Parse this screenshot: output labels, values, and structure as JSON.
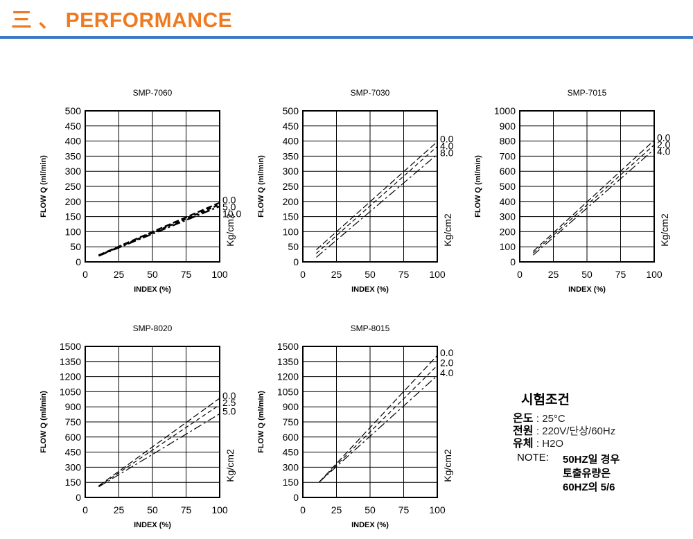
{
  "header": {
    "title": "三 、 PERFORMANCE",
    "accent": "#ee7a22",
    "rule_color": "#3b7bc4"
  },
  "chart_data": [
    {
      "type": "line",
      "title": "SMP-7060",
      "xlabel": "INDEX (%)",
      "ylabel": "FLOW Q (ml/min)",
      "unit": "Kg/cm2",
      "xlim": [
        0,
        100
      ],
      "ylim": [
        0,
        500
      ],
      "xticks": [
        "0",
        "25",
        "50",
        "75",
        "100"
      ],
      "yticks": [
        "0",
        "50",
        "100",
        "150",
        "200",
        "250",
        "300",
        "350",
        "400",
        "450",
        "500"
      ],
      "grid": true,
      "series": [
        {
          "name": "0.0",
          "x": [
            10,
            100
          ],
          "y": [
            22,
            196
          ]
        },
        {
          "name": "5.0",
          "x": [
            10,
            100
          ],
          "y": [
            21,
            190
          ]
        },
        {
          "name": "10.0",
          "x": [
            10,
            100
          ],
          "y": [
            20,
            184
          ]
        }
      ]
    },
    {
      "type": "line",
      "title": "SMP-7030",
      "xlabel": "INDEX (%)",
      "ylabel": "FLOW Q (ml/min)",
      "unit": "Kg/cm2",
      "xlim": [
        0,
        100
      ],
      "ylim": [
        0,
        500
      ],
      "xticks": [
        "0",
        "25",
        "50",
        "75",
        "100"
      ],
      "yticks": [
        "0",
        "50",
        "100",
        "150",
        "200",
        "250",
        "300",
        "350",
        "400",
        "450",
        "500"
      ],
      "grid": true,
      "series": [
        {
          "name": "0.0",
          "x": [
            10,
            100
          ],
          "y": [
            40,
            398
          ]
        },
        {
          "name": "4.0",
          "x": [
            10,
            100
          ],
          "y": [
            28,
            382
          ]
        },
        {
          "name": "8.0",
          "x": [
            10,
            100
          ],
          "y": [
            15,
            356
          ]
        }
      ]
    },
    {
      "type": "line",
      "title": "SMP-7015",
      "xlabel": "INDEX (%)",
      "ylabel": "FLOW Q (ml/min)",
      "unit": "Kg/cm2",
      "xlim": [
        0,
        100
      ],
      "ylim": [
        0,
        1000
      ],
      "xticks": [
        "0",
        "25",
        "50",
        "75",
        "100"
      ],
      "yticks": [
        "0",
        "100",
        "200",
        "300",
        "400",
        "500",
        "600",
        "700",
        "800",
        "900",
        "1000"
      ],
      "grid": true,
      "series": [
        {
          "name": "0.0",
          "x": [
            10,
            100
          ],
          "y": [
            70,
            805
          ]
        },
        {
          "name": "2.0",
          "x": [
            10,
            100
          ],
          "y": [
            58,
            775
          ]
        },
        {
          "name": "4.0",
          "x": [
            10,
            100
          ],
          "y": [
            45,
            745
          ]
        }
      ]
    },
    {
      "type": "line",
      "title": "SMP-8020",
      "xlabel": "INDEX (%)",
      "ylabel": "FLOW Q (ml/min)",
      "unit": "Kg/cm2",
      "xlim": [
        0,
        100
      ],
      "ylim": [
        0,
        1500
      ],
      "xticks": [
        "0",
        "25",
        "50",
        "75",
        "100"
      ],
      "yticks": [
        "0",
        "150",
        "300",
        "450",
        "600",
        "750",
        "900",
        "1050",
        "1200",
        "1350",
        "1500"
      ],
      "grid": true,
      "series": [
        {
          "name": "0.0",
          "x": [
            10,
            100
          ],
          "y": [
            115,
            985
          ]
        },
        {
          "name": "2.5",
          "x": [
            10,
            100
          ],
          "y": [
            110,
            920
          ]
        },
        {
          "name": "5.0",
          "x": [
            10,
            100
          ],
          "y": [
            105,
            830
          ]
        }
      ]
    },
    {
      "type": "line",
      "title": "SMP-8015",
      "xlabel": "INDEX (%)",
      "ylabel": "FLOW Q (ml/min)",
      "unit": "Kg/cm2",
      "xlim": [
        0,
        100
      ],
      "ylim": [
        0,
        1500
      ],
      "xticks": [
        "0",
        "25",
        "50",
        "75",
        "100"
      ],
      "yticks": [
        "0",
        "150",
        "300",
        "450",
        "600",
        "750",
        "900",
        "1050",
        "1200",
        "1350",
        "1500"
      ],
      "grid": true,
      "series": [
        {
          "name": "0.0",
          "x": [
            12,
            100
          ],
          "y": [
            150,
            1410
          ]
        },
        {
          "name": "2.0",
          "x": [
            12,
            100
          ],
          "y": [
            150,
            1310
          ]
        },
        {
          "name": "4.0",
          "x": [
            12,
            100
          ],
          "y": [
            150,
            1210
          ]
        }
      ]
    }
  ],
  "conditions": {
    "title": "시험조건",
    "rows": [
      {
        "label": "온도",
        "value": ": 25°C"
      },
      {
        "label": "전원",
        "value": ": 220V/단상/60Hz"
      },
      {
        "label": "유체",
        "value": ": H2O"
      }
    ],
    "note_label": "NOTE:",
    "note_lines": [
      "50HZ일 경우",
      "토출유량은",
      "60HZ의 5/6"
    ]
  }
}
